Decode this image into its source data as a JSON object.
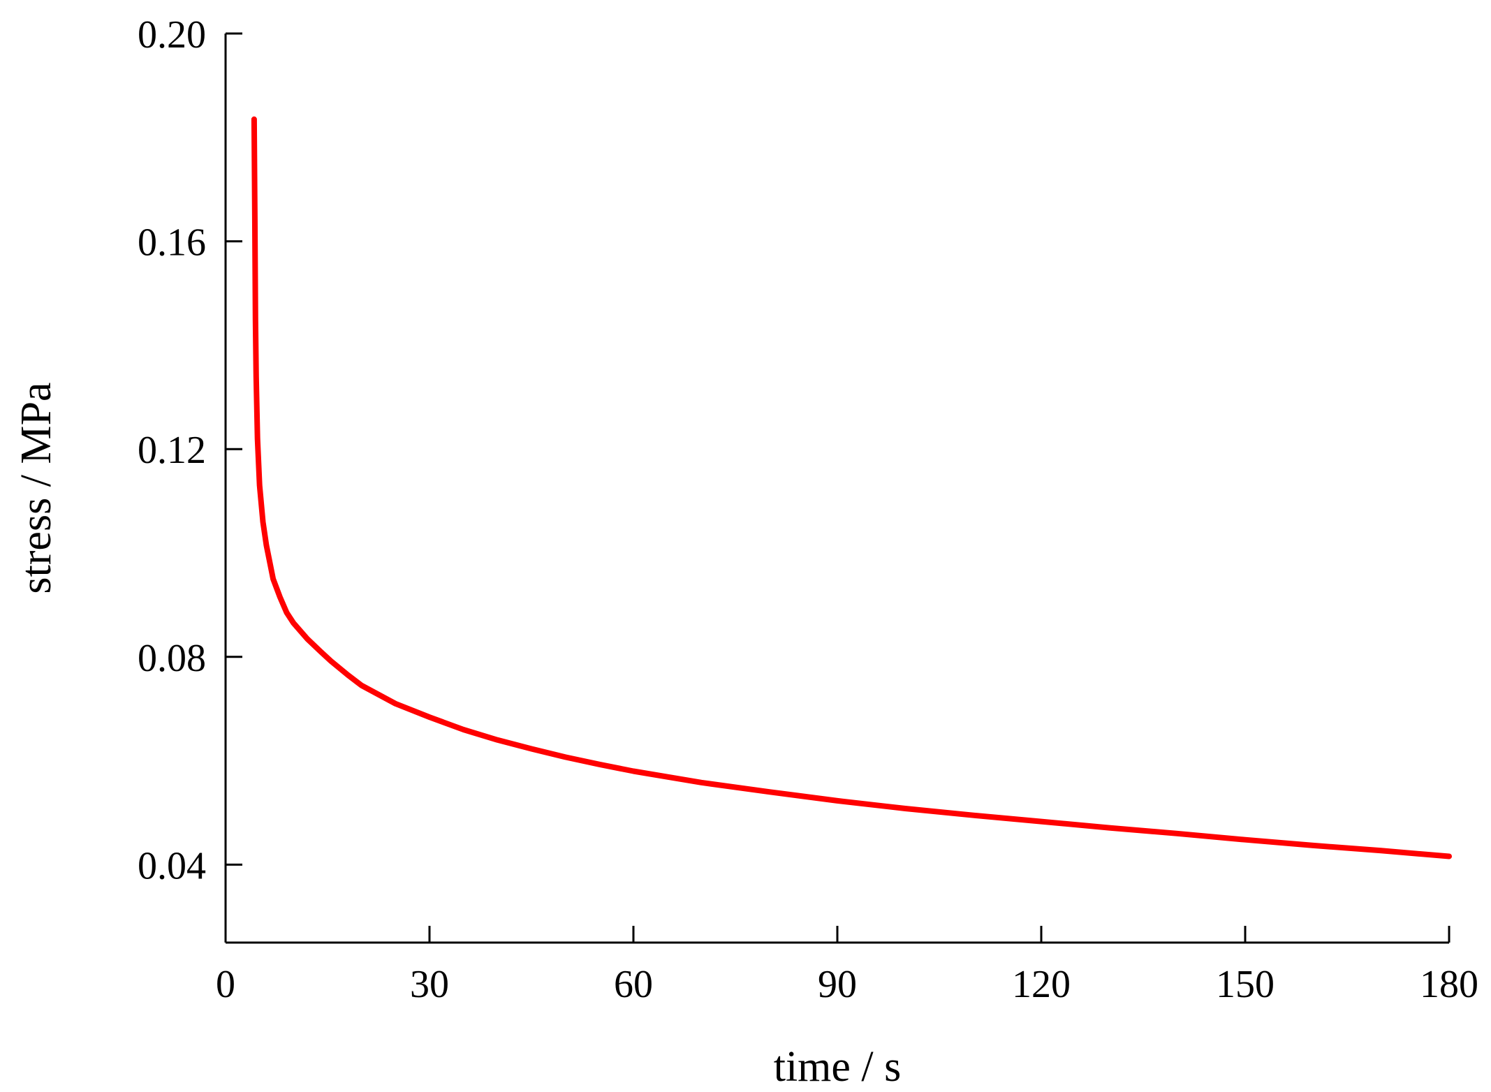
{
  "chart_data": {
    "type": "line",
    "title": "",
    "xlabel": "time / s",
    "ylabel": "stress / MPa",
    "xlim": [
      0,
      180
    ],
    "ylim": [
      0.025,
      0.2
    ],
    "xticks": [
      0,
      30,
      60,
      90,
      120,
      150,
      180
    ],
    "xtick_labels": [
      "0",
      "30",
      "60",
      "90",
      "120",
      "150",
      "180"
    ],
    "yticks": [
      0.04,
      0.08,
      0.12,
      0.16,
      0.2
    ],
    "ytick_labels": [
      "0.04",
      "0.08",
      "0.12",
      "0.16",
      "0.20"
    ],
    "grid": false,
    "legend": "none",
    "series": [
      {
        "color": "#ff0000",
        "x": [
          4.2,
          4.3,
          4.4,
          4.5,
          4.7,
          5.0,
          5.5,
          6.0,
          7.0,
          8.0,
          9.0,
          10.0,
          12.0,
          14.0,
          15.5,
          18.0,
          20.0,
          25.0,
          30.0,
          35.0,
          40.0,
          45.0,
          50.0,
          55.0,
          60.0,
          70.0,
          80.0,
          90.0,
          100.0,
          110.0,
          120.0,
          130.0,
          140.0,
          150.0,
          160.0,
          170.0,
          180.0
        ],
        "y": [
          0.1835,
          0.165,
          0.145,
          0.134,
          0.122,
          0.113,
          0.106,
          0.1015,
          0.095,
          0.0915,
          0.0885,
          0.0865,
          0.0835,
          0.081,
          0.0792,
          0.0765,
          0.0745,
          0.071,
          0.0684,
          0.066,
          0.064,
          0.0623,
          0.0607,
          0.0593,
          0.058,
          0.0558,
          0.054,
          0.0523,
          0.0508,
          0.0495,
          0.0483,
          0.0471,
          0.046,
          0.0448,
          0.0437,
          0.0427,
          0.0416
        ]
      }
    ]
  }
}
